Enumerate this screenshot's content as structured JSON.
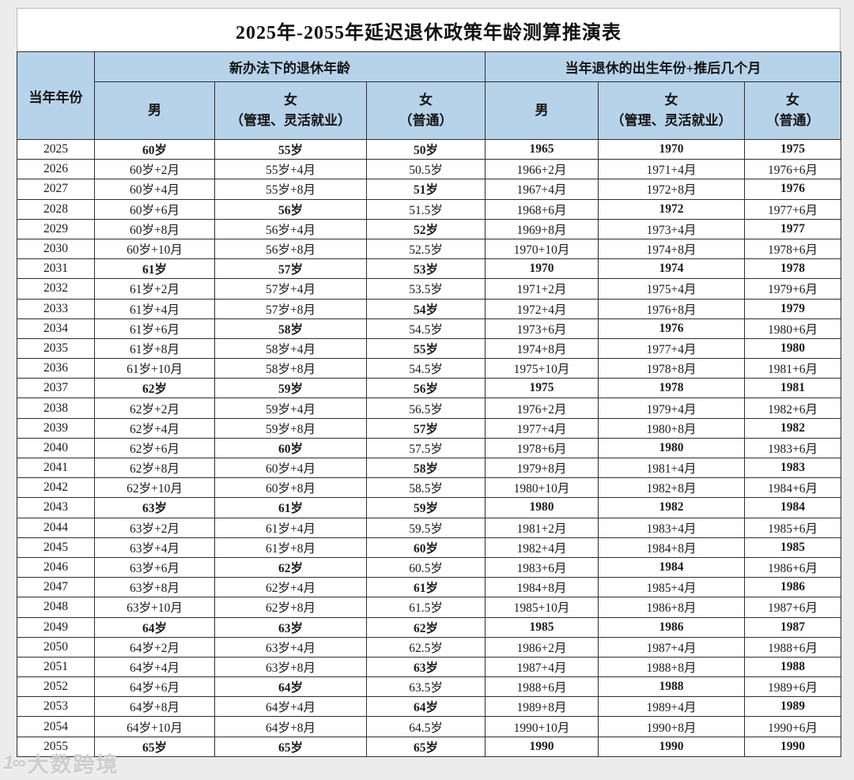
{
  "title": "2025年-2055年延迟退休政策年龄测算推演表",
  "colors": {
    "header_bg": "#b7d3ea",
    "page_bg": "#ececec",
    "border": "#2e2e2e",
    "table_bg": "#ffffff"
  },
  "header": {
    "year_col": "当年年份",
    "groups": [
      {
        "label": "新办法下的退休年龄"
      },
      {
        "label": "当年退休的出生年份+推后几个月"
      }
    ],
    "sub_cols": [
      {
        "lines": [
          "男"
        ]
      },
      {
        "lines": [
          "女",
          "（管理、灵活就业）"
        ]
      },
      {
        "lines": [
          "女",
          "（普通）"
        ]
      },
      {
        "lines": [
          "男"
        ]
      },
      {
        "lines": [
          "女",
          "（管理、灵活就业）"
        ]
      },
      {
        "lines": [
          "女",
          "（普通）"
        ]
      }
    ]
  },
  "rows": [
    {
      "year": "2025",
      "cells": [
        "60岁",
        "55岁",
        "50岁",
        "1965",
        "1970",
        "1975"
      ]
    },
    {
      "year": "2026",
      "cells": [
        "60岁+2月",
        "55岁+4月",
        "50.5岁",
        "1966+2月",
        "1971+4月",
        "1976+6月"
      ]
    },
    {
      "year": "2027",
      "cells": [
        "60岁+4月",
        "55岁+8月",
        "51岁",
        "1967+4月",
        "1972+8月",
        "1976"
      ]
    },
    {
      "year": "2028",
      "cells": [
        "60岁+6月",
        "56岁",
        "51.5岁",
        "1968+6月",
        "1972",
        "1977+6月"
      ]
    },
    {
      "year": "2029",
      "cells": [
        "60岁+8月",
        "56岁+4月",
        "52岁",
        "1969+8月",
        "1973+4月",
        "1977"
      ]
    },
    {
      "year": "2030",
      "cells": [
        "60岁+10月",
        "56岁+8月",
        "52.5岁",
        "1970+10月",
        "1974+8月",
        "1978+6月"
      ]
    },
    {
      "year": "2031",
      "cells": [
        "61岁",
        "57岁",
        "53岁",
        "1970",
        "1974",
        "1978"
      ]
    },
    {
      "year": "2032",
      "cells": [
        "61岁+2月",
        "57岁+4月",
        "53.5岁",
        "1971+2月",
        "1975+4月",
        "1979+6月"
      ]
    },
    {
      "year": "2033",
      "cells": [
        "61岁+4月",
        "57岁+8月",
        "54岁",
        "1972+4月",
        "1976+8月",
        "1979"
      ]
    },
    {
      "year": "2034",
      "cells": [
        "61岁+6月",
        "58岁",
        "54.5岁",
        "1973+6月",
        "1976",
        "1980+6月"
      ]
    },
    {
      "year": "2035",
      "cells": [
        "61岁+8月",
        "58岁+4月",
        "55岁",
        "1974+8月",
        "1977+4月",
        "1980"
      ]
    },
    {
      "year": "2036",
      "cells": [
        "61岁+10月",
        "58岁+8月",
        "54.5岁",
        "1975+10月",
        "1978+8月",
        "1981+6月"
      ]
    },
    {
      "year": "2037",
      "cells": [
        "62岁",
        "59岁",
        "56岁",
        "1975",
        "1978",
        "1981"
      ]
    },
    {
      "year": "2038",
      "cells": [
        "62岁+2月",
        "59岁+4月",
        "56.5岁",
        "1976+2月",
        "1979+4月",
        "1982+6月"
      ]
    },
    {
      "year": "2039",
      "cells": [
        "62岁+4月",
        "59岁+8月",
        "57岁",
        "1977+4月",
        "1980+8月",
        "1982"
      ]
    },
    {
      "year": "2040",
      "cells": [
        "62岁+6月",
        "60岁",
        "57.5岁",
        "1978+6月",
        "1980",
        "1983+6月"
      ]
    },
    {
      "year": "2041",
      "cells": [
        "62岁+8月",
        "60岁+4月",
        "58岁",
        "1979+8月",
        "1981+4月",
        "1983"
      ]
    },
    {
      "year": "2042",
      "cells": [
        "62岁+10月",
        "60岁+8月",
        "58.5岁",
        "1980+10月",
        "1982+8月",
        "1984+6月"
      ]
    },
    {
      "year": "2043",
      "cells": [
        "63岁",
        "61岁",
        "59岁",
        "1980",
        "1982",
        "1984"
      ]
    },
    {
      "year": "2044",
      "cells": [
        "63岁+2月",
        "61岁+4月",
        "59.5岁",
        "1981+2月",
        "1983+4月",
        "1985+6月"
      ]
    },
    {
      "year": "2045",
      "cells": [
        "63岁+4月",
        "61岁+8月",
        "60岁",
        "1982+4月",
        "1984+8月",
        "1985"
      ]
    },
    {
      "year": "2046",
      "cells": [
        "63岁+6月",
        "62岁",
        "60.5岁",
        "1983+6月",
        "1984",
        "1986+6月"
      ]
    },
    {
      "year": "2047",
      "cells": [
        "63岁+8月",
        "62岁+4月",
        "61岁",
        "1984+8月",
        "1985+4月",
        "1986"
      ]
    },
    {
      "year": "2048",
      "cells": [
        "63岁+10月",
        "62岁+8月",
        "61.5岁",
        "1985+10月",
        "1986+8月",
        "1987+6月"
      ]
    },
    {
      "year": "2049",
      "cells": [
        "64岁",
        "63岁",
        "62岁",
        "1985",
        "1986",
        "1987"
      ]
    },
    {
      "year": "2050",
      "cells": [
        "64岁+2月",
        "63岁+4月",
        "62.5岁",
        "1986+2月",
        "1987+4月",
        "1988+6月"
      ]
    },
    {
      "year": "2051",
      "cells": [
        "64岁+4月",
        "63岁+8月",
        "63岁",
        "1987+4月",
        "1988+8月",
        "1988"
      ]
    },
    {
      "year": "2052",
      "cells": [
        "64岁+6月",
        "64岁",
        "63.5岁",
        "1988+6月",
        "1988",
        "1989+6月"
      ]
    },
    {
      "year": "2053",
      "cells": [
        "64岁+8月",
        "64岁+4月",
        "64岁",
        "1989+8月",
        "1989+4月",
        "1989"
      ]
    },
    {
      "year": "2054",
      "cells": [
        "64岁+10月",
        "64岁+8月",
        "64.5岁",
        "1990+10月",
        "1990+8月",
        "1990+6月"
      ]
    },
    {
      "year": "2055",
      "cells": [
        "65岁",
        "65岁",
        "65岁",
        "1990",
        "1990",
        "1990"
      ]
    }
  ],
  "watermark": {
    "logo": "1∞",
    "text": "大数跨境"
  }
}
